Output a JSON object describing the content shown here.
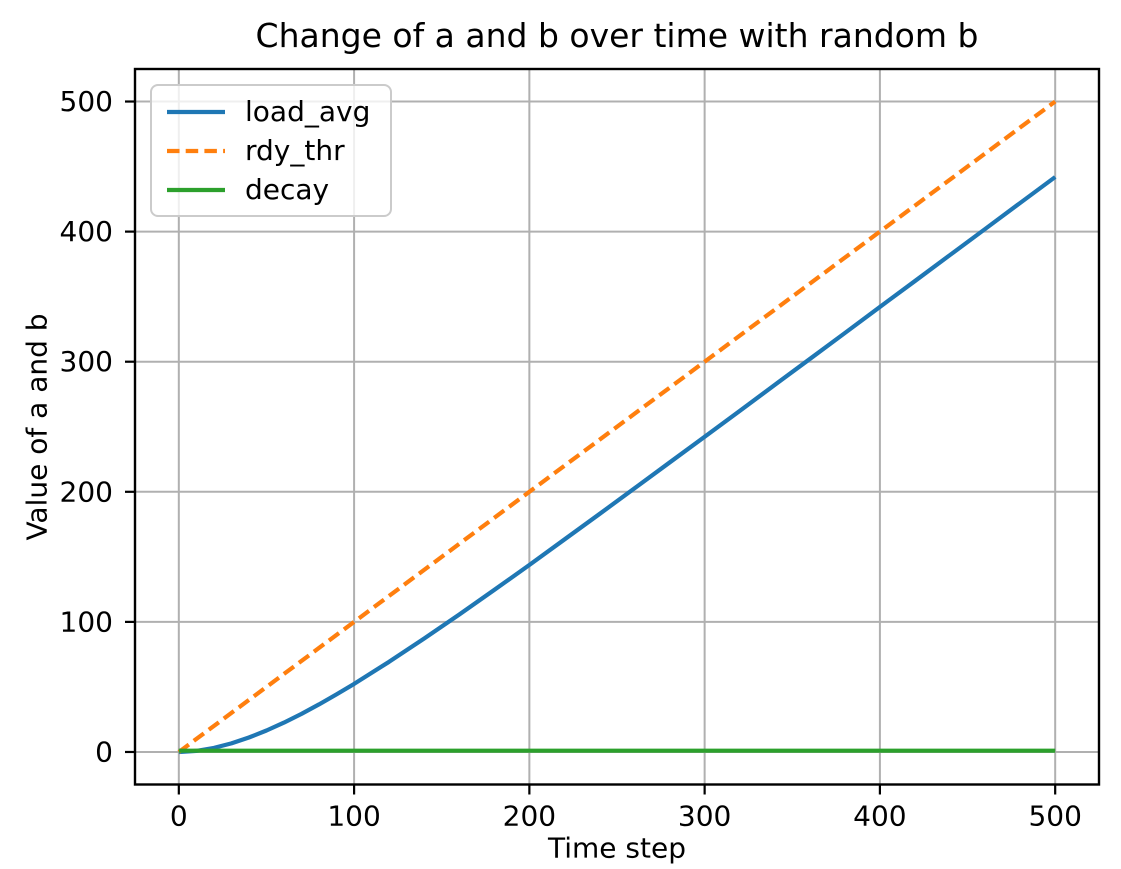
{
  "figure": {
    "background": "#ffffff",
    "text_color": "#000000",
    "grid_color": "#b0b0b0",
    "spine_color": "#000000",
    "legend_border_color": "#cbcbcb"
  },
  "chart_data": {
    "type": "line",
    "title": "Change of a and b over time with random b",
    "xlabel": "Time step",
    "ylabel": "Value of a and b",
    "xlim": [
      -25,
      525
    ],
    "ylim": [
      -25,
      525
    ],
    "xticks": [
      0,
      100,
      200,
      300,
      400,
      500
    ],
    "yticks": [
      0,
      100,
      200,
      300,
      400,
      500
    ],
    "grid": true,
    "legend": {
      "position": "upper left",
      "frame": true
    },
    "series": [
      {
        "name": "load_avg",
        "color": "#1f77b4",
        "linestyle": "solid",
        "x": [
          0,
          10,
          20,
          30,
          40,
          50,
          60,
          70,
          80,
          90,
          100,
          120,
          140,
          160,
          180,
          200,
          220,
          240,
          260,
          280,
          300,
          320,
          340,
          360,
          380,
          400,
          420,
          440,
          460,
          480,
          500
        ],
        "y": [
          0,
          0.8,
          3.1,
          6.6,
          11.1,
          16.5,
          22.6,
          29.3,
          36.6,
          44.3,
          52.3,
          69.3,
          87.2,
          105.7,
          124.6,
          143.8,
          163.3,
          182.9,
          202.7,
          222.5,
          242.3,
          262.2,
          282.2,
          302.1,
          322.1,
          342.1,
          362.0,
          382.0,
          402.0,
          422.0,
          442.0
        ]
      },
      {
        "name": "rdy_thr",
        "color": "#ff7f0e",
        "linestyle": "dashed",
        "x": [
          0,
          500
        ],
        "y": [
          0,
          500
        ]
      },
      {
        "name": "decay",
        "color": "#2ca02c",
        "linestyle": "solid",
        "x": [
          0,
          500
        ],
        "y": [
          1,
          1
        ]
      }
    ]
  }
}
